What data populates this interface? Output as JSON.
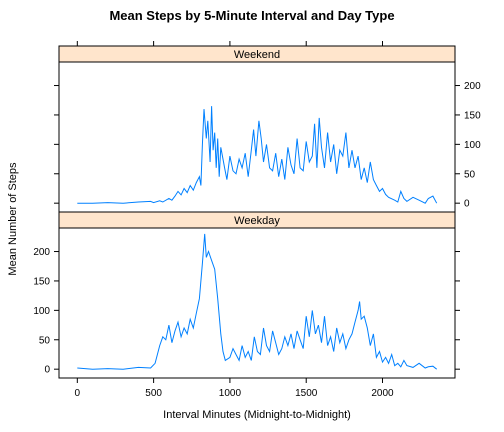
{
  "chart_data": {
    "type": "line",
    "title": "Mean Steps by 5-Minute Interval and Day Type",
    "xlabel": "Interval Minutes (Midnight-to-Midnight)",
    "ylabel": "Mean Number of Steps",
    "xlim": [
      -120,
      2475
    ],
    "xticks": [
      0,
      500,
      1000,
      1500,
      2000
    ],
    "line_color": "#0080ff",
    "strip_color": "#ffe5cc",
    "panels": [
      {
        "name": "Weekend",
        "ylim": [
          -15,
          240
        ],
        "yticks": [
          0,
          50,
          100,
          150,
          200
        ],
        "ytick_side": "right",
        "x": [
          0,
          100,
          200,
          300,
          400,
          480,
          500,
          540,
          560,
          600,
          620,
          640,
          660,
          680,
          700,
          720,
          740,
          760,
          780,
          800,
          810,
          820,
          830,
          845,
          855,
          870,
          880,
          890,
          900,
          910,
          920,
          930,
          940,
          955,
          965,
          980,
          1000,
          1020,
          1040,
          1060,
          1080,
          1100,
          1120,
          1140,
          1155,
          1170,
          1190,
          1205,
          1220,
          1240,
          1260,
          1280,
          1300,
          1320,
          1340,
          1360,
          1380,
          1400,
          1420,
          1440,
          1460,
          1480,
          1500,
          1520,
          1540,
          1555,
          1570,
          1585,
          1600,
          1620,
          1640,
          1660,
          1680,
          1700,
          1720,
          1740,
          1760,
          1780,
          1800,
          1820,
          1840,
          1860,
          1880,
          1900,
          1920,
          1940,
          1960,
          1980,
          2000,
          2020,
          2040,
          2080,
          2100,
          2120,
          2140,
          2160,
          2200,
          2240,
          2280,
          2300,
          2330,
          2355
        ],
        "y": [
          0,
          0,
          1,
          0,
          2,
          3,
          1,
          4,
          2,
          8,
          5,
          12,
          20,
          14,
          25,
          18,
          30,
          22,
          35,
          45,
          30,
          100,
          160,
          110,
          140,
          70,
          165,
          90,
          120,
          60,
          110,
          45,
          95,
          75,
          60,
          40,
          80,
          55,
          50,
          75,
          60,
          85,
          45,
          90,
          125,
          80,
          140,
          110,
          70,
          100,
          60,
          55,
          85,
          45,
          75,
          40,
          95,
          65,
          50,
          110,
          60,
          55,
          105,
          70,
          80,
          135,
          60,
          145,
          95,
          60,
          120,
          70,
          100,
          50,
          90,
          80,
          120,
          60,
          90,
          60,
          80,
          40,
          60,
          35,
          70,
          40,
          30,
          20,
          25,
          15,
          10,
          5,
          2,
          20,
          8,
          3,
          10,
          5,
          0,
          8,
          12,
          0
        ]
      },
      {
        "name": "Weekday",
        "ylim": [
          -15,
          240
        ],
        "yticks": [
          0,
          50,
          100,
          150,
          200
        ],
        "ytick_side": "left",
        "x": [
          0,
          100,
          200,
          300,
          400,
          480,
          510,
          540,
          560,
          580,
          600,
          620,
          640,
          660,
          680,
          700,
          720,
          740,
          760,
          780,
          800,
          820,
          835,
          845,
          860,
          880,
          900,
          920,
          940,
          955,
          970,
          1000,
          1020,
          1040,
          1060,
          1080,
          1100,
          1120,
          1140,
          1160,
          1180,
          1200,
          1220,
          1240,
          1260,
          1280,
          1300,
          1320,
          1340,
          1360,
          1380,
          1400,
          1420,
          1440,
          1460,
          1480,
          1500,
          1520,
          1540,
          1560,
          1580,
          1600,
          1620,
          1640,
          1660,
          1680,
          1700,
          1720,
          1740,
          1760,
          1780,
          1800,
          1820,
          1840,
          1850,
          1860,
          1880,
          1900,
          1920,
          1940,
          1960,
          1980,
          2000,
          2020,
          2040,
          2060,
          2080,
          2100,
          2120,
          2140,
          2160,
          2200,
          2240,
          2280,
          2300,
          2330,
          2355
        ],
        "y": [
          2,
          0,
          1,
          0,
          3,
          2,
          10,
          40,
          55,
          50,
          75,
          45,
          65,
          80,
          55,
          70,
          60,
          85,
          70,
          95,
          120,
          180,
          230,
          190,
          200,
          185,
          170,
          120,
          60,
          30,
          15,
          20,
          35,
          25,
          15,
          40,
          20,
          30,
          15,
          55,
          30,
          25,
          70,
          40,
          30,
          65,
          45,
          25,
          35,
          55,
          40,
          60,
          35,
          65,
          50,
          35,
          90,
          55,
          100,
          60,
          75,
          45,
          90,
          40,
          55,
          30,
          70,
          45,
          60,
          35,
          50,
          60,
          80,
          100,
          115,
          85,
          90,
          70,
          40,
          60,
          20,
          30,
          12,
          20,
          10,
          25,
          6,
          10,
          4,
          15,
          6,
          3,
          10,
          2,
          4,
          5,
          0
        ]
      }
    ]
  }
}
